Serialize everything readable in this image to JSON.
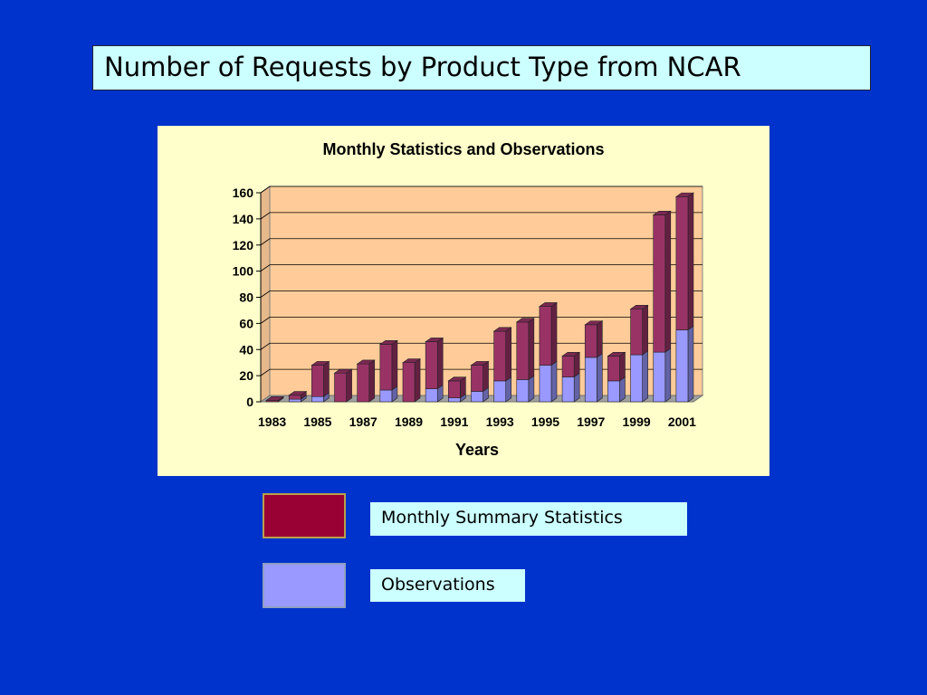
{
  "slide": {
    "title": "Number of Requests by Product Type from NCAR"
  },
  "legend": {
    "items": [
      {
        "label": "Monthly Summary Statistics",
        "color": "#990033"
      },
      {
        "label": "Observations",
        "color": "#9999ff"
      }
    ]
  },
  "chart_data": {
    "type": "bar",
    "stacked": true,
    "three_d": true,
    "title": "Monthly Statistics and Observations",
    "xlabel": "Years",
    "ylabel": "",
    "ylim": [
      0,
      160
    ],
    "yticks": [
      0,
      20,
      40,
      60,
      80,
      100,
      120,
      140,
      160
    ],
    "categories": [
      "1983",
      "1984",
      "1985",
      "1986",
      "1987",
      "1988",
      "1989",
      "1990",
      "1991",
      "1992",
      "1993",
      "1994",
      "1995",
      "1996",
      "1997",
      "1998",
      "1999",
      "2000",
      "2001"
    ],
    "xtick_labels": [
      "1983",
      "1985",
      "1987",
      "1989",
      "1991",
      "1993",
      "1995",
      "1997",
      "1999",
      "2001"
    ],
    "grid": true,
    "plot_background": "#ffcc99",
    "series": [
      {
        "name": "Observations",
        "color": "#9999ff",
        "values": [
          0,
          2,
          4,
          0,
          0,
          9,
          0,
          10,
          3,
          8,
          16,
          17,
          28,
          19,
          34,
          16,
          36,
          38,
          55
        ]
      },
      {
        "name": "Monthly Summary Statistics",
        "color": "#993366",
        "values": [
          1,
          3,
          24,
          22,
          29,
          35,
          30,
          36,
          13,
          20,
          38,
          44,
          45,
          16,
          25,
          19,
          35,
          105,
          102
        ]
      }
    ]
  }
}
